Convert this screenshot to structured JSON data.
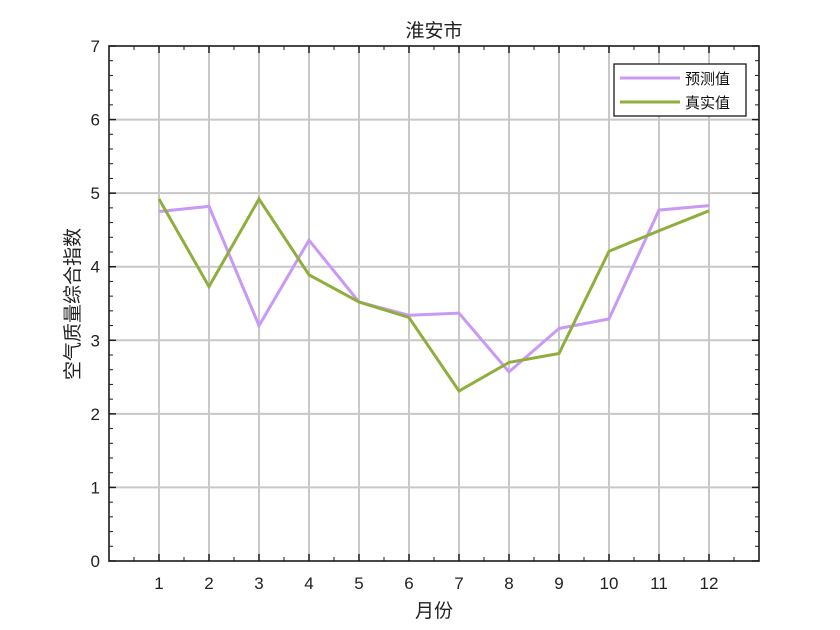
{
  "chart_data": {
    "type": "line",
    "title": "淮安市",
    "xlabel": "月份",
    "ylabel": "空气质量综合指数",
    "x": [
      1,
      2,
      3,
      4,
      5,
      6,
      7,
      8,
      9,
      10,
      11,
      12
    ],
    "xlim": [
      0,
      13
    ],
    "ylim": [
      0,
      7
    ],
    "xticks": [
      "1",
      "2",
      "3",
      "4",
      "5",
      "6",
      "7",
      "8",
      "9",
      "10",
      "11",
      "12"
    ],
    "yticks": [
      "0",
      "1",
      "2",
      "3",
      "4",
      "5",
      "6",
      "7"
    ],
    "grid": true,
    "legend_position": "top-right",
    "series": [
      {
        "name": "预测值",
        "color": "#c899f5",
        "values": [
          4.75,
          4.82,
          3.2,
          4.36,
          3.52,
          3.34,
          3.37,
          2.57,
          3.16,
          3.29,
          4.77,
          4.83
        ]
      },
      {
        "name": "真实值",
        "color": "#8fae3e",
        "values": [
          4.92,
          3.73,
          4.92,
          3.89,
          3.52,
          3.31,
          2.31,
          2.7,
          2.82,
          4.21,
          4.49,
          4.76
        ]
      }
    ]
  }
}
